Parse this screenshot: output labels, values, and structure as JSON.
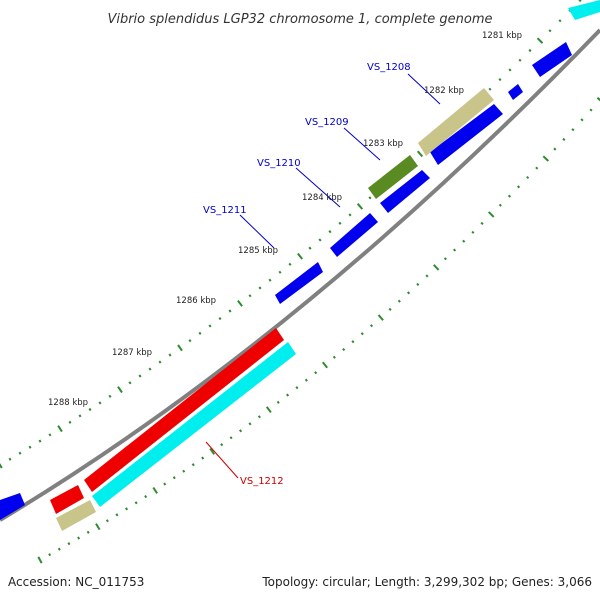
{
  "title": "Vibrio splendidus LGP32 chromosome 1, complete genome",
  "footer": {
    "accession": "Accession: NC_011753",
    "summary": "Topology: circular; Length: 3,299,302 bp; Genes: 3,066"
  },
  "colors": {
    "backbone": "#777777",
    "tick": "#2e8b2e",
    "gene_blue": "#0000ee",
    "gene_red": "#ee0000",
    "gene_cyan": "#00eeee",
    "gene_tan": "#c8c48a",
    "gene_olive": "#5a8a22",
    "label_blue": "#0000cc",
    "label_red": "#cc0000"
  },
  "ticks": {
    "labels": [
      "1281 kbp",
      "1282 kbp",
      "1283 kbp",
      "1284 kbp",
      "1285 kbp",
      "1286 kbp",
      "1287 kbp",
      "1288 kbp"
    ]
  },
  "gene_labels": [
    {
      "text": "VS_1208",
      "color": "blue"
    },
    {
      "text": "VS_1209",
      "color": "blue"
    },
    {
      "text": "VS_1210",
      "color": "blue"
    },
    {
      "text": "VS_1211",
      "color": "blue"
    },
    {
      "text": "VS_1212",
      "color": "red"
    }
  ]
}
